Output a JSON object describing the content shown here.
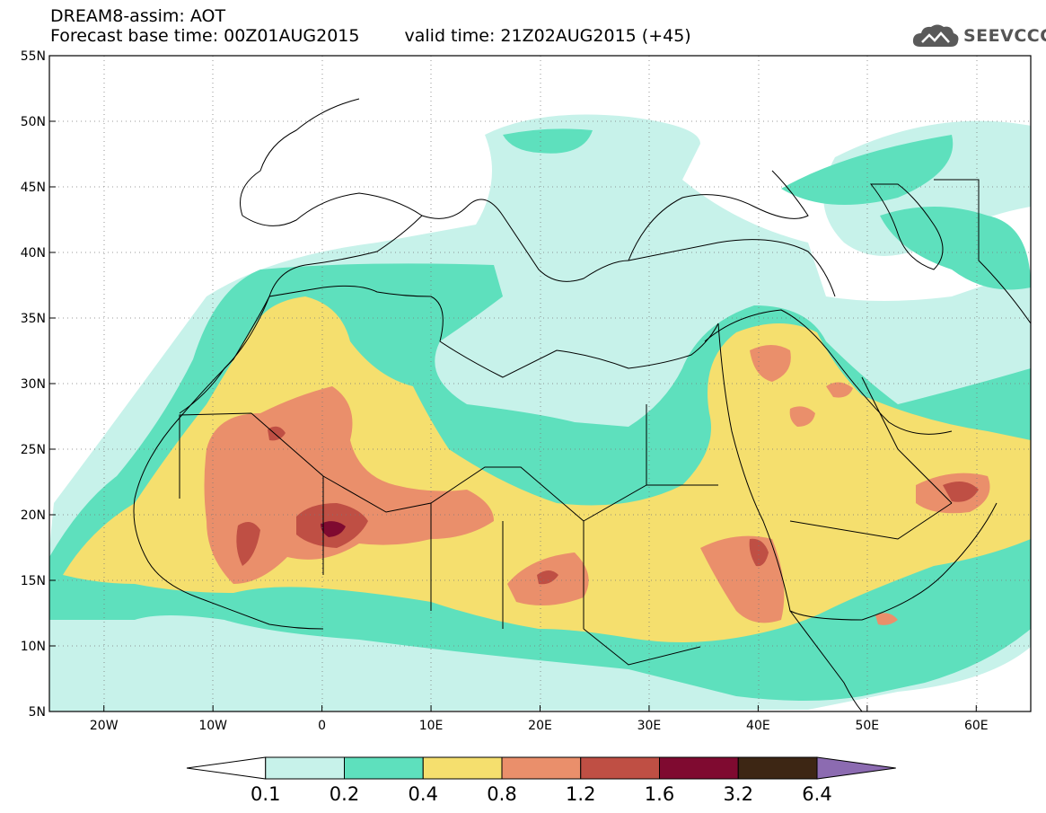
{
  "title": {
    "line1": "DREAM8-assim: AOT",
    "base_label": "Forecast base time: 00Z01AUG2015",
    "valid_label": "valid time: 21Z02AUG2015 (+45)"
  },
  "logo": {
    "icon": "cloud-icon",
    "text": "SEEVCCC"
  },
  "map": {
    "lon_range": [
      -25,
      65
    ],
    "lat_range": [
      5,
      55
    ],
    "grid": "dotted",
    "lat_ticks": [
      {
        "v": 55,
        "label": "55N"
      },
      {
        "v": 50,
        "label": "50N"
      },
      {
        "v": 45,
        "label": "45N"
      },
      {
        "v": 40,
        "label": "40N"
      },
      {
        "v": 35,
        "label": "35N"
      },
      {
        "v": 30,
        "label": "30N"
      },
      {
        "v": 25,
        "label": "25N"
      },
      {
        "v": 20,
        "label": "20N"
      },
      {
        "v": 15,
        "label": "15N"
      },
      {
        "v": 10,
        "label": "10N"
      },
      {
        "v": 5,
        "label": "5N"
      }
    ],
    "lon_ticks": [
      {
        "v": -20,
        "label": "20W"
      },
      {
        "v": -10,
        "label": "10W"
      },
      {
        "v": 0,
        "label": "0"
      },
      {
        "v": 10,
        "label": "10E"
      },
      {
        "v": 20,
        "label": "20E"
      },
      {
        "v": 30,
        "label": "30E"
      },
      {
        "v": 40,
        "label": "40E"
      },
      {
        "v": 50,
        "label": "50E"
      },
      {
        "v": 60,
        "label": "60E"
      }
    ]
  },
  "colorbar": {
    "colors": [
      "#ffffff",
      "#c7f2ea",
      "#5ee0bd",
      "#f5df6e",
      "#ea8f6b",
      "#bf4f44",
      "#7f0a30",
      "#3d2614",
      "#8c6bb1"
    ],
    "labels": [
      "0.1",
      "0.2",
      "0.4",
      "0.8",
      "1.2",
      "1.6",
      "3.2",
      "6.4"
    ]
  }
}
